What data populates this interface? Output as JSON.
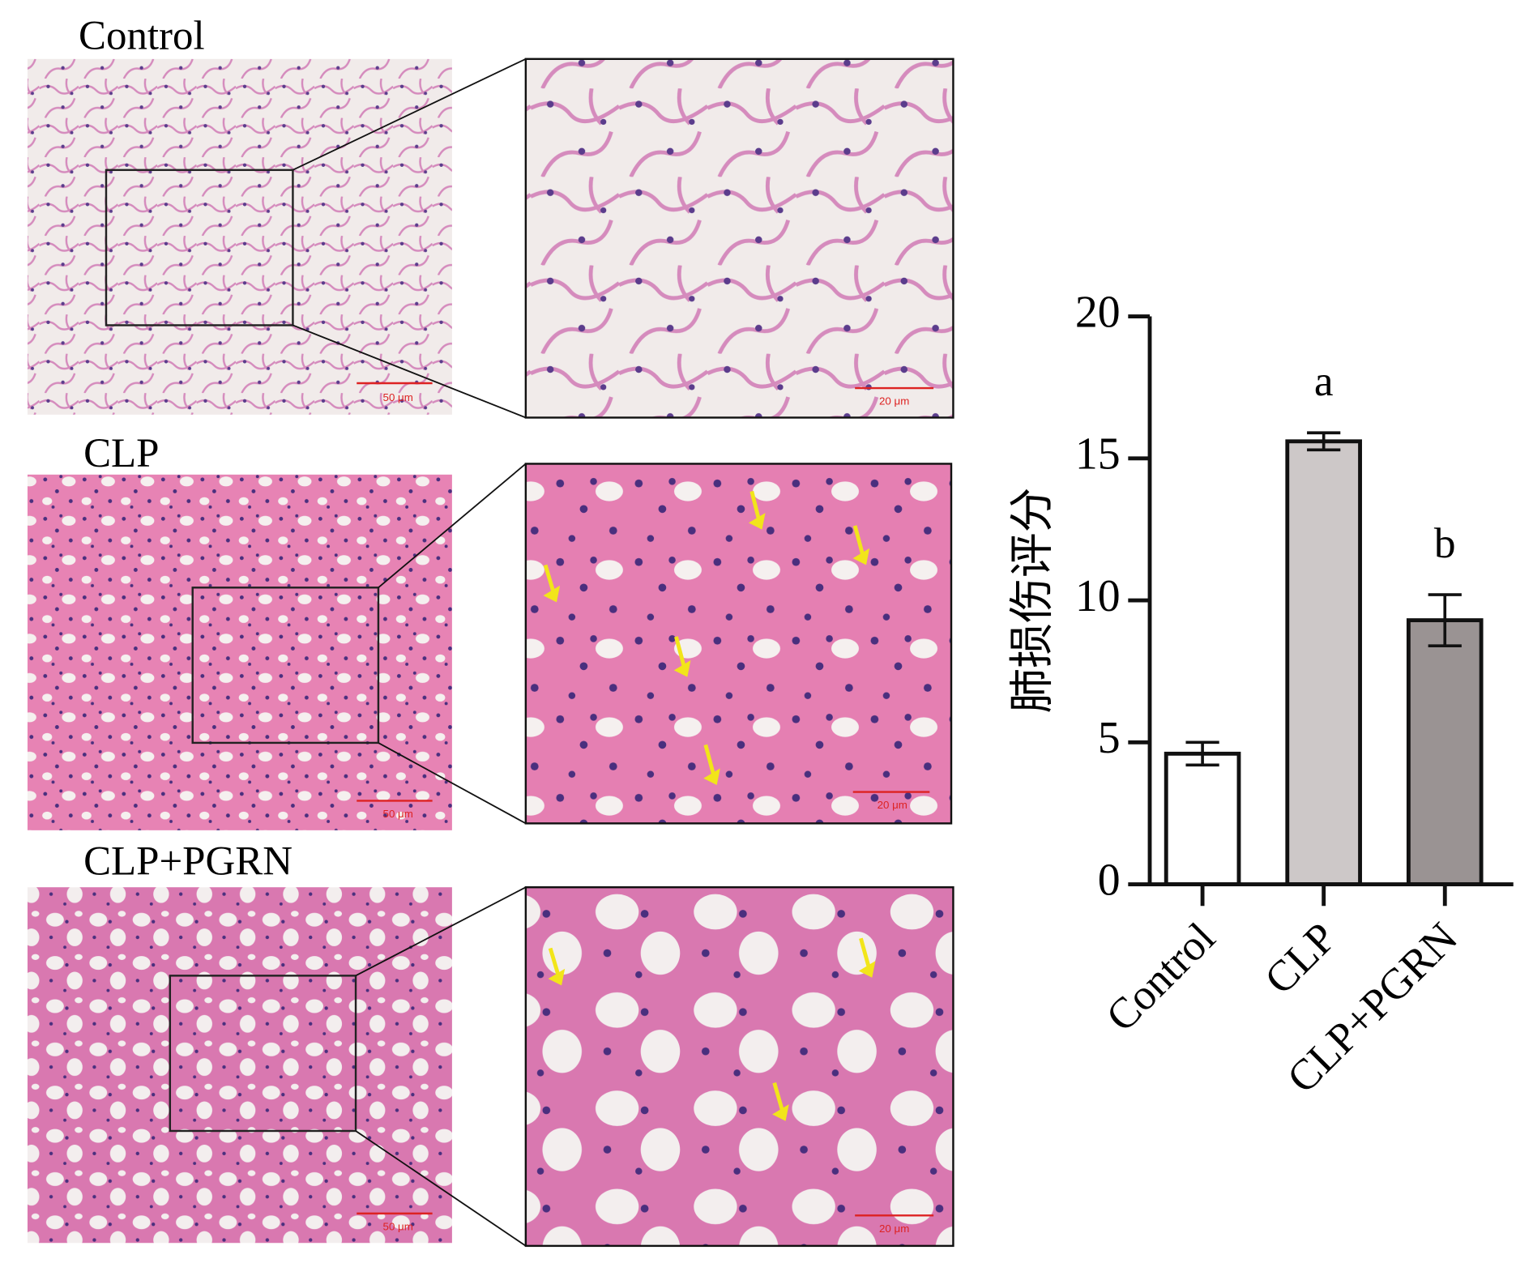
{
  "panels": [
    {
      "label": "Control",
      "scale_bars": [
        "50 μm",
        "20 μm"
      ]
    },
    {
      "label": "CLP",
      "scale_bars": [
        "50 μm",
        "20 μm"
      ]
    },
    {
      "label": "CLP+PGRN",
      "scale_bars": [
        "50 μm",
        "20 μm"
      ]
    }
  ],
  "chart_data": {
    "type": "bar",
    "ylabel": "肺损伤评分",
    "categories": [
      "Control",
      "CLP",
      "CLP+PGRN"
    ],
    "values": [
      4.6,
      15.6,
      9.3
    ],
    "errors": [
      0.4,
      0.3,
      0.9
    ],
    "bar_labels": [
      null,
      "a",
      "b"
    ],
    "colors": [
      "#ffffff",
      "#cdc8c8",
      "#9a9393"
    ],
    "ylim": [
      0,
      20
    ],
    "yticks": [
      0,
      5,
      10,
      15,
      20
    ]
  }
}
